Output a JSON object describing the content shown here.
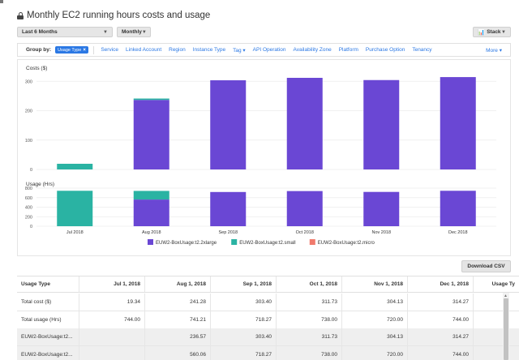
{
  "title": "Monthly EC2 running hours costs and usage",
  "controls": {
    "date_range": "Last 6 Months",
    "granularity": "Monthly",
    "chart_style": "Stack"
  },
  "group_by": {
    "label": "Group by:",
    "selected": "Usage Type",
    "options": [
      "Service",
      "Linked Account",
      "Region",
      "Instance Type",
      "Tag ▾",
      "API Operation",
      "Availability Zone",
      "Platform",
      "Purchase Option",
      "Tenancy"
    ],
    "more": "More ▾"
  },
  "download_label": "Download CSV",
  "chart_data": [
    {
      "type": "bar",
      "title": "Costs ($)",
      "stacked": true,
      "categories": [
        "Jul 2018",
        "Aug 2018",
        "Sep 2018",
        "Oct 2018",
        "Nov 2018",
        "Dec 2018"
      ],
      "series": [
        {
          "name": "EUW2-BoxUsage:t2.2xlarge",
          "color": "#6a47d4",
          "values": [
            0,
            236.57,
            303.4,
            311.73,
            304.13,
            314.27
          ]
        },
        {
          "name": "EUW2-BoxUsage:t2.small",
          "color": "#2ab3a3",
          "values": [
            19.34,
            4.71,
            0,
            0,
            0,
            0
          ]
        },
        {
          "name": "EUW2-BoxUsage:t2.micro",
          "color": "#f07a6c",
          "values": [
            0,
            0,
            0,
            0,
            0,
            0
          ]
        }
      ],
      "y_ticks": [
        0,
        100,
        200,
        300
      ],
      "ylim": [
        0,
        320
      ],
      "grid": true
    },
    {
      "type": "bar",
      "title": "Usage (Hrs)",
      "stacked": true,
      "categories": [
        "Jul 2018",
        "Aug 2018",
        "Sep 2018",
        "Oct 2018",
        "Nov 2018",
        "Dec 2018"
      ],
      "series": [
        {
          "name": "EUW2-BoxUsage:t2.2xlarge",
          "color": "#6a47d4",
          "values": [
            0,
            560.06,
            718.27,
            738.0,
            720.0,
            744.0
          ]
        },
        {
          "name": "EUW2-BoxUsage:t2.small",
          "color": "#2ab3a3",
          "values": [
            744.0,
            181.15,
            0,
            0,
            0,
            0
          ]
        },
        {
          "name": "EUW2-BoxUsage:t2.micro",
          "color": "#f07a6c",
          "values": [
            0,
            0,
            0,
            0,
            0,
            0
          ]
        }
      ],
      "y_ticks": [
        0,
        200,
        400,
        600,
        800
      ],
      "ylim": [
        0,
        800
      ],
      "grid": true,
      "legend_position": "bottom"
    }
  ],
  "table": {
    "headers": [
      "Usage Type",
      "Jul 1, 2018",
      "Aug 1, 2018",
      "Sep 1, 2018",
      "Oct 1, 2018",
      "Nov 1, 2018",
      "Dec 1, 2018",
      "Usage Ty"
    ],
    "rows": [
      [
        "Total cost ($)",
        "19.34",
        "241.28",
        "303.40",
        "311.73",
        "304.13",
        "314.27",
        ""
      ],
      [
        "Total usage (Hrs)",
        "744.00",
        "741.21",
        "718.27",
        "738.00",
        "720.00",
        "744.00",
        ""
      ],
      [
        "EUW2-BoxUsage:t2...",
        "",
        "236.57",
        "303.40",
        "311.73",
        "304.13",
        "314.27",
        ""
      ],
      [
        "EUW2-BoxUsage:t2...",
        "",
        "560.06",
        "718.27",
        "738.00",
        "720.00",
        "744.00",
        ""
      ]
    ]
  }
}
